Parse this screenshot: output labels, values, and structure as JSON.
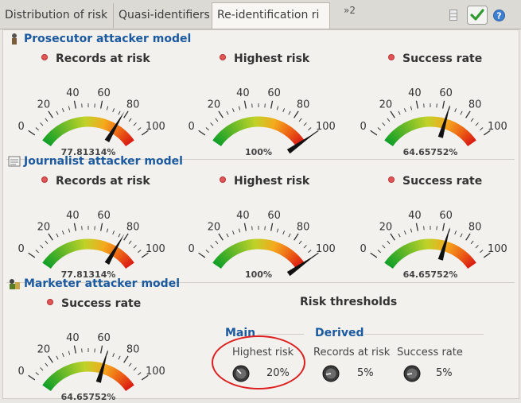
{
  "tabs": [
    {
      "label": "Distribution of risk"
    },
    {
      "label": "Quasi-identifiers"
    },
    {
      "label": "Re-identification ri"
    }
  ],
  "tab_overflow": "»2",
  "toolbar_icons": [
    "layout-icon",
    "check-icon",
    "help-icon"
  ],
  "sections": [
    {
      "title": "Prosecutor attacker model",
      "icon": "prosecutor-icon",
      "gauges": [
        {
          "label": "Records at risk",
          "value": 77.81314,
          "text": "77.81314%"
        },
        {
          "label": "Highest risk",
          "value": 100,
          "text": "100%"
        },
        {
          "label": "Success rate",
          "value": 64.65752,
          "text": "64.65752%"
        }
      ]
    },
    {
      "title": "Journalist attacker model",
      "icon": "journalist-icon",
      "gauges": [
        {
          "label": "Records at risk",
          "value": 77.81314,
          "text": "77.81314%"
        },
        {
          "label": "Highest risk",
          "value": 100,
          "text": "100%"
        },
        {
          "label": "Success rate",
          "value": 64.65752,
          "text": "64.65752%"
        }
      ]
    },
    {
      "title": "Marketer attacker model",
      "icon": "marketer-icon",
      "gauges": [
        {
          "label": "Success rate",
          "value": 64.65752,
          "text": "64.65752%"
        }
      ]
    }
  ],
  "gauge_ticks": [
    "0",
    "20",
    "40",
    "60",
    "80",
    "100"
  ],
  "thresholds": {
    "title": "Risk thresholds",
    "main_label": "Main",
    "derived_label": "Derived",
    "knobs": [
      {
        "label": "Highest risk",
        "value": "20%"
      },
      {
        "label": "Records at risk",
        "value": "5%"
      },
      {
        "label": "Success rate",
        "value": "5%"
      }
    ]
  },
  "colors": {
    "accent": "#1c5aa0",
    "highlight_ring": "#dd1f1f"
  }
}
